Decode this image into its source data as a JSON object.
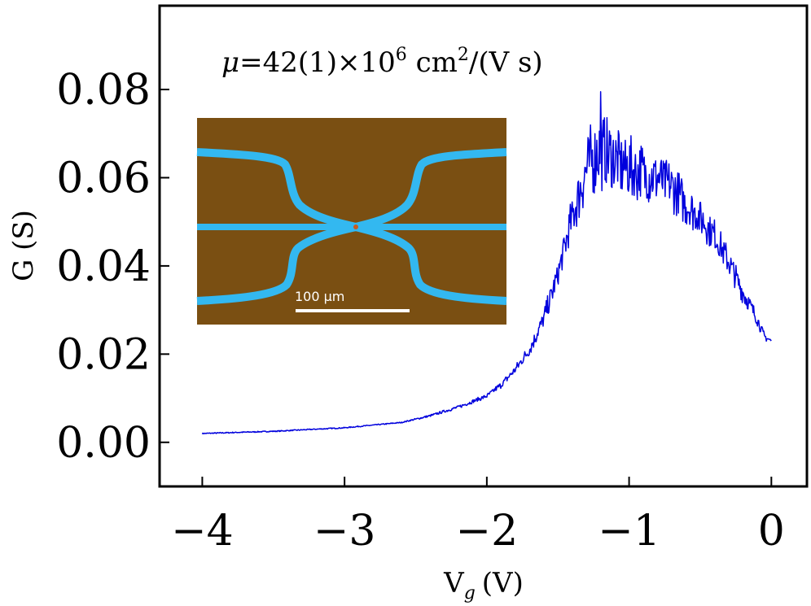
{
  "chart_data": {
    "type": "line",
    "xlabel": "V",
    "xlabel_sub": "g",
    "xlabel_unit": "(V)",
    "ylabel": "G (S)",
    "xlim": [
      -4.3,
      0.25
    ],
    "ylim": [
      -0.01,
      0.099
    ],
    "x_ticks": [
      -4,
      -3,
      -2,
      -1,
      0
    ],
    "x_tick_labels": [
      "−4",
      "−3",
      "−2",
      "−1",
      "0"
    ],
    "y_ticks": [
      0.0,
      0.02,
      0.04,
      0.06,
      0.08
    ],
    "y_tick_labels": [
      "0.00",
      "0.02",
      "0.04",
      "0.06",
      "0.08"
    ],
    "annotation": {
      "mu": "μ",
      "equals_value": "=42(1)×10",
      "exp1": "6",
      "unit_a": " cm",
      "exp2": "2",
      "unit_b": "/(V s)"
    },
    "inset": {
      "description_free": true,
      "scale_bar_label": "100 μm",
      "background_color": "#7a4f12",
      "electrode_color": "#33b8f0"
    },
    "series": [
      {
        "name": "G",
        "color": "#0000dd",
        "anchors_x": [
          -4.0,
          -3.5,
          -3.0,
          -2.6,
          -2.4,
          -2.2,
          -2.0,
          -1.9,
          -1.8,
          -1.7,
          -1.6,
          -1.5,
          -1.4,
          -1.3,
          -1.25,
          -1.2,
          -1.1,
          -1.0,
          -0.9,
          -0.8,
          -0.7,
          -0.6,
          -0.5,
          -0.4,
          -0.3,
          -0.2,
          -0.1,
          -0.05,
          0.0
        ],
        "anchors_y": [
          0.002,
          0.0025,
          0.0033,
          0.0045,
          0.006,
          0.008,
          0.0105,
          0.013,
          0.0165,
          0.021,
          0.028,
          0.038,
          0.051,
          0.062,
          0.065,
          0.066,
          0.064,
          0.062,
          0.061,
          0.06,
          0.058,
          0.054,
          0.051,
          0.047,
          0.041,
          0.034,
          0.028,
          0.024,
          0.023
        ],
        "noise_amplitude": [
          0.0001,
          0.0001,
          0.0001,
          0.0001,
          0.0002,
          0.0003,
          0.0004,
          0.0006,
          0.0008,
          0.0012,
          0.0018,
          0.0025,
          0.004,
          0.006,
          0.007,
          0.007,
          0.0065,
          0.006,
          0.0055,
          0.005,
          0.0045,
          0.004,
          0.0035,
          0.003,
          0.0025,
          0.002,
          0.0012,
          0.0008,
          0.0004
        ],
        "peak_value": 0.0795,
        "peak_x": -1.2
      }
    ]
  }
}
